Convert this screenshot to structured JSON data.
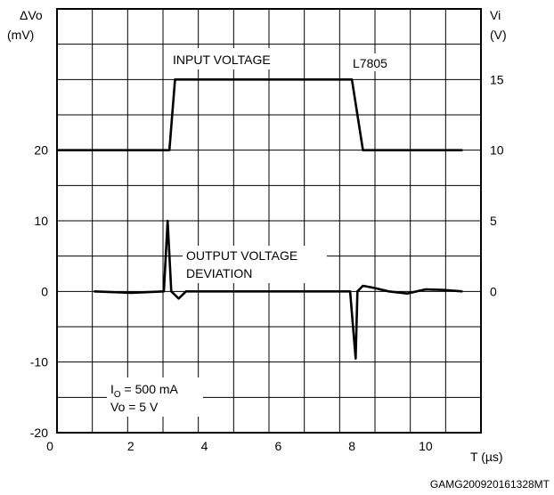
{
  "chart_data": {
    "type": "line",
    "title": "",
    "xlabel": "T (µs)",
    "ylabel_left": [
      "ΔVo",
      "(mV)"
    ],
    "ylabel_right": [
      "Vi",
      "(V)"
    ],
    "xlim": [
      0,
      11.5
    ],
    "ylim_left": [
      -20,
      40
    ],
    "ylim_right": [
      -10,
      20
    ],
    "grid": true,
    "x_ticks": [
      0,
      2,
      4,
      6,
      8,
      10
    ],
    "y_ticks_left": [
      -20,
      -10,
      0,
      10,
      20
    ],
    "y_ticks_right": [
      0,
      5,
      10,
      15
    ],
    "annotations": {
      "part": "L7805",
      "input_voltage": "INPUT VOLTAGE",
      "output_line1": "OUTPUT VOLTAGE",
      "output_line2": "DEVIATION",
      "io_main": "I",
      "io_sub": "O",
      "io_value": " = 500 mA",
      "vo": "Vo = 5 V"
    },
    "series": [
      {
        "axis": "right",
        "x": [
          0,
          3.05,
          3.05,
          3.2,
          8.0,
          8.3,
          11
        ],
        "y": [
          10,
          10,
          10,
          15,
          15,
          10,
          10
        ]
      },
      {
        "axis": "left",
        "x": [
          1,
          2,
          2.9,
          3.0,
          3.1,
          3.3,
          3.5,
          4,
          6,
          7.85,
          7.95,
          8.1,
          8.15,
          8.3,
          8.6,
          9.0,
          9.5,
          10.0,
          10.5,
          11
        ],
        "y": [
          0,
          -0.2,
          0,
          10,
          0,
          -1,
          0,
          0,
          0,
          0,
          0,
          -9.5,
          0,
          0.8,
          0.5,
          0,
          -0.3,
          0.3,
          0.2,
          0
        ]
      }
    ]
  },
  "footer_code": "GAMG200920161328MT"
}
